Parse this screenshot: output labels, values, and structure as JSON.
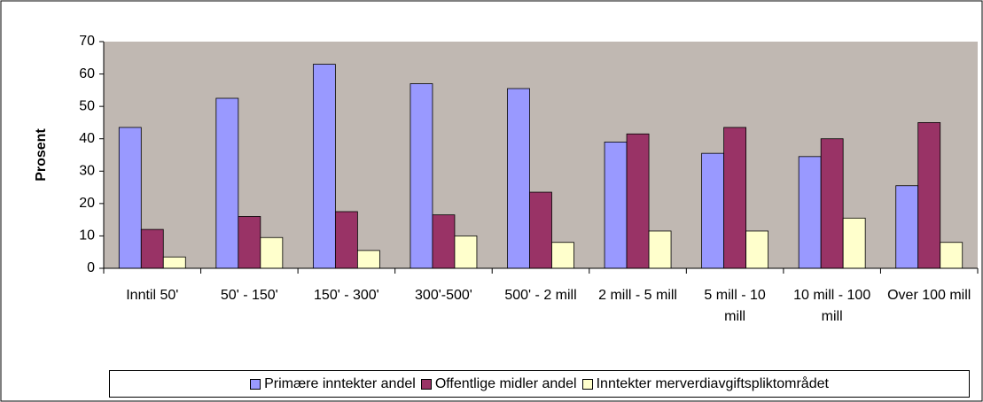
{
  "chart_data": {
    "type": "bar",
    "ylabel": "Prosent",
    "categories": [
      "Inntil 50'",
      "50' - 150'",
      "150' - 300'",
      "300'-500'",
      "500' - 2 mill",
      "2 mill - 5 mill",
      "5 mill - 10 mill",
      "10 mill - 100 mill",
      "Over 100 mill"
    ],
    "series": [
      {
        "name": "Primære inntekter andel",
        "color": "#9999ff",
        "values": [
          43.5,
          52.5,
          63,
          57,
          55.5,
          39,
          35.5,
          34.5,
          25.5
        ]
      },
      {
        "name": "Offentlige midler andel",
        "color": "#993366",
        "values": [
          12,
          16,
          17.5,
          16.5,
          23.5,
          41.5,
          43.5,
          40,
          45
        ]
      },
      {
        "name": "Inntekter merverdiavgiftspliktområdet",
        "color": "#ffffcc",
        "values": [
          3.5,
          9.5,
          5.5,
          10,
          8,
          11.5,
          11.5,
          15.5,
          8
        ]
      }
    ],
    "ylim": [
      0,
      70
    ],
    "yticks": [
      0,
      10,
      20,
      30,
      40,
      50,
      60,
      70
    ],
    "plot_background": "#c0b8b2",
    "legend": "bottom"
  }
}
